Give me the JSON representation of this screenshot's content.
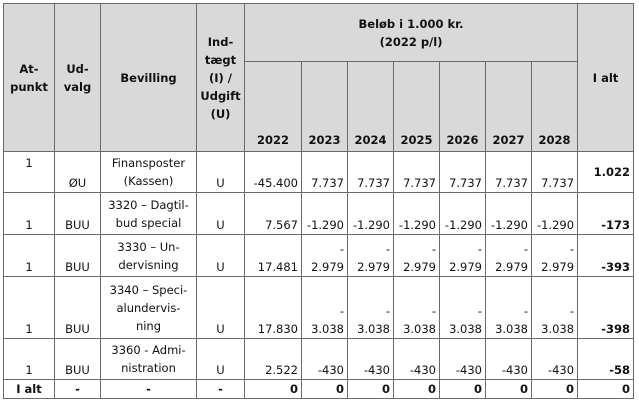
{
  "headers": {
    "atpunkt": "At-\npunkt",
    "udvalg": "Ud-\nvalg",
    "bevilling": "Bevilling",
    "indtaegt": "Ind-\ntægt\n(I) /\nUdgift\n(U)",
    "belob_title": "Beløb i 1.000 kr.\n(2022 p/l)",
    "years": [
      "2022",
      "2023",
      "2024",
      "2025",
      "2026",
      "2027",
      "2028"
    ],
    "i_alt": "I alt"
  },
  "rows": [
    {
      "atpunkt": "1",
      "udvalg": "ØU",
      "bevilling": "Finansposter\n(Kassen)",
      "type": "U",
      "values": [
        "-45.400",
        "7.737",
        "7.737",
        "7.737",
        "7.737",
        "7.737",
        "7.737"
      ],
      "total": "1.022"
    },
    {
      "atpunkt": "1",
      "udvalg": "BUU",
      "bevilling": "3320 – Dagtil-\nbud special",
      "type": "U",
      "values": [
        "7.567",
        "-1.290",
        "-1.290",
        "-1.290",
        "-1.290",
        "-1.290",
        "-1.290"
      ],
      "total": "-173"
    },
    {
      "atpunkt": "1",
      "udvalg": "BUU",
      "bevilling": "3330 – Un-\ndervisning",
      "type": "U",
      "values": [
        "17.481",
        "-\n2.979",
        "-\n2.979",
        "-\n2.979",
        "-\n2.979",
        "-\n2.979",
        "-\n2.979"
      ],
      "total": "-393"
    },
    {
      "atpunkt": "1",
      "udvalg": "BUU",
      "bevilling": "3340 – Speci-\nalundervis-\nning",
      "type": "U",
      "values": [
        "17.830",
        "-\n3.038",
        "-\n3.038",
        "-\n3.038",
        "-\n3.038",
        "-\n3.038",
        "-\n3.038"
      ],
      "total": "-398"
    },
    {
      "atpunkt": "1",
      "udvalg": "BUU",
      "bevilling": "3360 - Admi-\nnistration",
      "type": "U",
      "values": [
        "2.522",
        "-430",
        "-430",
        "-430",
        "-430",
        "-430",
        "-430"
      ],
      "total": "-58"
    }
  ],
  "total_row": {
    "label": "I alt",
    "udvalg": "-",
    "bevilling": "-",
    "type": "-",
    "values": [
      "0",
      "0",
      "0",
      "0",
      "0",
      "0",
      "0"
    ],
    "total": "0"
  }
}
